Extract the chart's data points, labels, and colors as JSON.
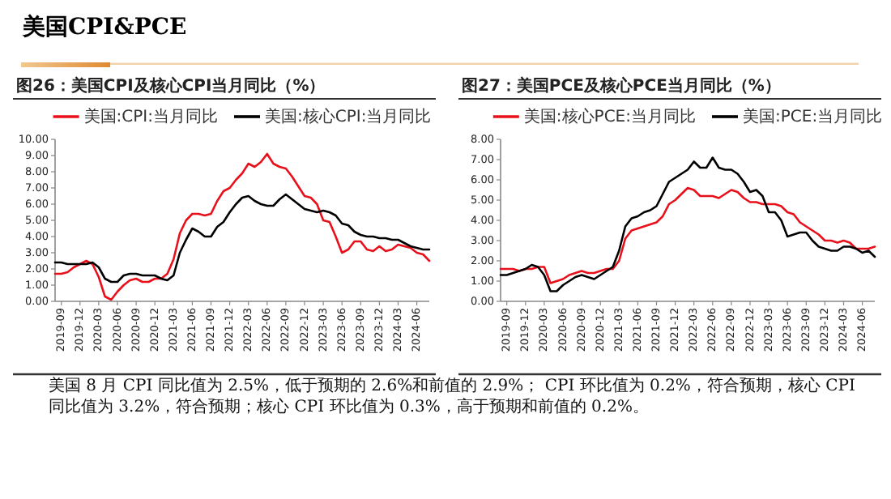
{
  "chart_data": [
    {
      "type": "other",
      "title": "美国CPI&PCE"
    },
    {
      "type": "line",
      "title": "图26：美国CPI及核心CPI当月同比（%）",
      "legend": "top",
      "x": [
        "2019-08",
        "2019-09",
        "2019-10",
        "2019-11",
        "2019-12",
        "2020-01",
        "2020-02",
        "2020-03",
        "2020-04",
        "2020-05",
        "2020-06",
        "2020-07",
        "2020-08",
        "2020-09",
        "2020-10",
        "2020-11",
        "2020-12",
        "2021-01",
        "2021-02",
        "2021-03",
        "2021-04",
        "2021-05",
        "2021-06",
        "2021-07",
        "2021-08",
        "2021-09",
        "2021-10",
        "2021-11",
        "2021-12",
        "2022-01",
        "2022-02",
        "2022-03",
        "2022-04",
        "2022-05",
        "2022-06",
        "2022-07",
        "2022-08",
        "2022-09",
        "2022-10",
        "2022-11",
        "2022-12",
        "2023-01",
        "2023-02",
        "2023-03",
        "2023-04",
        "2023-05",
        "2023-06",
        "2023-07",
        "2023-08",
        "2023-09",
        "2023-10",
        "2023-11",
        "2023-12",
        "2024-01",
        "2024-02",
        "2024-03",
        "2024-04",
        "2024-05",
        "2024-06",
        "2024-07",
        "2024-08"
      ],
      "series": [
        {
          "name": "美国:CPI:当月同比",
          "color": "#e8101a",
          "values": [
            1.7,
            1.7,
            1.8,
            2.1,
            2.3,
            2.5,
            2.3,
            1.5,
            0.3,
            0.1,
            0.6,
            1.0,
            1.3,
            1.4,
            1.2,
            1.2,
            1.4,
            1.4,
            1.7,
            2.6,
            4.2,
            5.0,
            5.4,
            5.4,
            5.3,
            5.4,
            6.2,
            6.8,
            7.0,
            7.5,
            7.9,
            8.5,
            8.3,
            8.6,
            9.1,
            8.5,
            8.3,
            8.2,
            7.7,
            7.1,
            6.5,
            6.4,
            6.0,
            5.0,
            4.9,
            4.0,
            3.0,
            3.2,
            3.7,
            3.7,
            3.2,
            3.1,
            3.4,
            3.1,
            3.2,
            3.5,
            3.4,
            3.3,
            3.0,
            2.9,
            2.5
          ]
        },
        {
          "name": "美国:核心CPI:当月同比",
          "color": "#000000",
          "values": [
            2.4,
            2.4,
            2.3,
            2.3,
            2.3,
            2.3,
            2.4,
            2.1,
            1.4,
            1.2,
            1.2,
            1.6,
            1.7,
            1.7,
            1.6,
            1.6,
            1.6,
            1.4,
            1.3,
            1.6,
            3.0,
            3.8,
            4.5,
            4.3,
            4.0,
            4.0,
            4.6,
            4.9,
            5.5,
            6.0,
            6.4,
            6.5,
            6.2,
            6.0,
            5.9,
            5.9,
            6.3,
            6.6,
            6.3,
            6.0,
            5.7,
            5.6,
            5.5,
            5.6,
            5.5,
            5.3,
            4.8,
            4.7,
            4.3,
            4.1,
            4.0,
            4.0,
            3.9,
            3.9,
            3.8,
            3.8,
            3.6,
            3.4,
            3.3,
            3.2,
            3.2
          ]
        }
      ],
      "xlim": [
        "2019-08",
        "2024-08"
      ],
      "xticks": [
        "2019-09",
        "2019-12",
        "2020-03",
        "2020-06",
        "2020-09",
        "2020-12",
        "2021-03",
        "2021-06",
        "2021-09",
        "2021-12",
        "2022-03",
        "2022-06",
        "2022-09",
        "2022-12",
        "2023-03",
        "2023-06",
        "2023-09",
        "2023-12",
        "2024-03",
        "2024-06"
      ],
      "ylim": [
        0,
        10
      ],
      "yticks": [
        {
          "value": 0,
          "label": "0.00"
        },
        {
          "value": 1,
          "label": "1.00"
        },
        {
          "value": 2,
          "label": "2.00"
        },
        {
          "value": 3,
          "label": "3.00"
        },
        {
          "value": 4,
          "label": "4.00"
        },
        {
          "value": 5,
          "label": "5.00"
        },
        {
          "value": 6,
          "label": "6.00"
        },
        {
          "value": 7,
          "label": "7.00"
        },
        {
          "value": 8,
          "label": "8.00"
        },
        {
          "value": 9,
          "label": "9.00"
        },
        {
          "value": 10,
          "label": "10.00"
        }
      ]
    },
    {
      "type": "line",
      "title": "图27：美国PCE及核心PCE当月同比（%）",
      "legend": "top",
      "x": [
        "2019-08",
        "2019-09",
        "2019-10",
        "2019-11",
        "2019-12",
        "2020-01",
        "2020-02",
        "2020-03",
        "2020-04",
        "2020-05",
        "2020-06",
        "2020-07",
        "2020-08",
        "2020-09",
        "2020-10",
        "2020-11",
        "2020-12",
        "2021-01",
        "2021-02",
        "2021-03",
        "2021-04",
        "2021-05",
        "2021-06",
        "2021-07",
        "2021-08",
        "2021-09",
        "2021-10",
        "2021-11",
        "2021-12",
        "2022-01",
        "2022-02",
        "2022-03",
        "2022-04",
        "2022-05",
        "2022-06",
        "2022-07",
        "2022-08",
        "2022-09",
        "2022-10",
        "2022-11",
        "2022-12",
        "2023-01",
        "2023-02",
        "2023-03",
        "2023-04",
        "2023-05",
        "2023-06",
        "2023-07",
        "2023-08",
        "2023-09",
        "2023-10",
        "2023-11",
        "2023-12",
        "2024-01",
        "2024-02",
        "2024-03",
        "2024-04",
        "2024-05",
        "2024-06",
        "2024-07",
        "2024-08"
      ],
      "series": [
        {
          "name": "美国:核心PCE:当月同比",
          "color": "#e8101a",
          "values": [
            1.6,
            1.6,
            1.6,
            1.5,
            1.6,
            1.6,
            1.7,
            1.7,
            0.9,
            1.0,
            1.1,
            1.3,
            1.4,
            1.5,
            1.4,
            1.4,
            1.5,
            1.6,
            1.6,
            2.0,
            3.1,
            3.5,
            3.6,
            3.7,
            3.8,
            3.9,
            4.2,
            4.8,
            5.0,
            5.3,
            5.6,
            5.5,
            5.2,
            5.2,
            5.2,
            5.1,
            5.3,
            5.5,
            5.4,
            5.1,
            4.9,
            4.9,
            4.8,
            4.8,
            4.8,
            4.7,
            4.4,
            4.3,
            3.9,
            3.7,
            3.5,
            3.3,
            3.0,
            3.0,
            2.9,
            3.0,
            2.9,
            2.6,
            2.6,
            2.6,
            2.7
          ]
        },
        {
          "name": "美国:PCE:当月同比",
          "color": "#000000",
          "values": [
            1.3,
            1.3,
            1.4,
            1.5,
            1.6,
            1.8,
            1.7,
            1.3,
            0.5,
            0.5,
            0.8,
            1.0,
            1.2,
            1.3,
            1.2,
            1.1,
            1.3,
            1.5,
            1.7,
            2.5,
            3.7,
            4.1,
            4.2,
            4.4,
            4.5,
            4.7,
            5.3,
            5.9,
            6.1,
            6.3,
            6.5,
            6.9,
            6.6,
            6.6,
            7.1,
            6.6,
            6.5,
            6.5,
            6.3,
            5.9,
            5.4,
            5.5,
            5.2,
            4.4,
            4.4,
            4.0,
            3.2,
            3.3,
            3.4,
            3.4,
            3.0,
            2.7,
            2.6,
            2.5,
            2.5,
            2.7,
            2.7,
            2.6,
            2.4,
            2.5,
            2.2
          ]
        }
      ],
      "xlim": [
        "2019-08",
        "2024-08"
      ],
      "xticks": [
        "2019-09",
        "2019-12",
        "2020-03",
        "2020-06",
        "2020-09",
        "2020-12",
        "2021-03",
        "2021-06",
        "2021-09",
        "2021-12",
        "2022-03",
        "2022-06",
        "2022-09",
        "2022-12",
        "2023-03",
        "2023-06",
        "2023-09",
        "2023-12",
        "2024-03",
        "2024-06"
      ],
      "ylim": [
        0,
        8
      ],
      "yticks": [
        {
          "value": 0,
          "label": "0.00"
        },
        {
          "value": 1,
          "label": "1.00"
        },
        {
          "value": 2,
          "label": "2.00"
        },
        {
          "value": 3,
          "label": "3.00"
        },
        {
          "value": 4,
          "label": "4.00"
        },
        {
          "value": 5,
          "label": "5.00"
        },
        {
          "value": 6,
          "label": "6.00"
        },
        {
          "value": 7,
          "label": "7.00"
        },
        {
          "value": 8,
          "label": "8.00"
        }
      ]
    },
    {
      "type": "other",
      "annotations": [
        "美国 8 月 CPI 同比值为 2.5%，低于预期的 2.6%和前值的 2.9%； CPI 环比值为 0.2%，符合预期，核心 CPI 同比值为 3.2%，符合预期；核心 CPI 环比值为 0.3%，高于预期和前值的 0.2%。"
      ]
    }
  ]
}
